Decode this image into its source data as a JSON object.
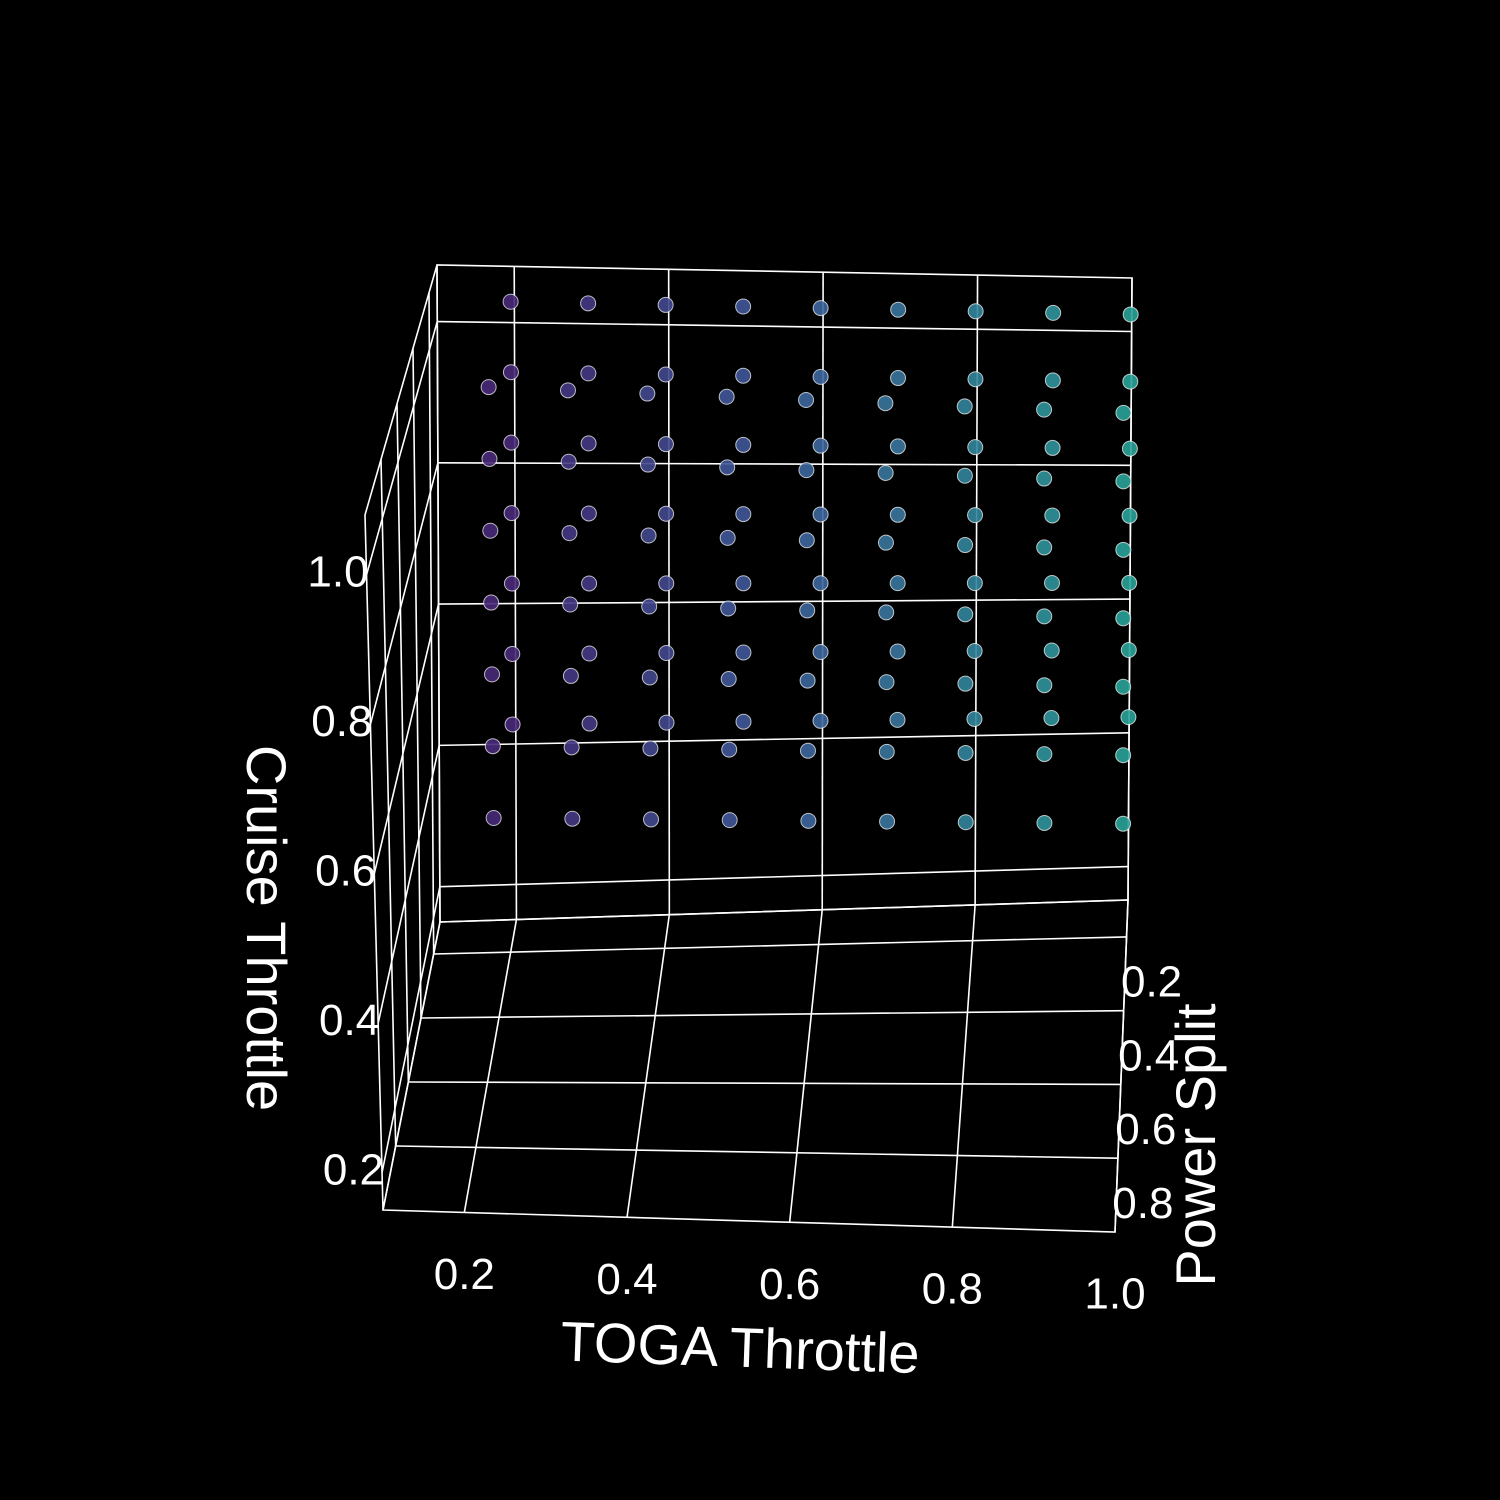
{
  "chart_data": {
    "type": "scatter3d",
    "xlabel": "TOGA Throttle",
    "ylabel": "Power Split",
    "zlabel": "Cruise Throttle",
    "xlim": [
      0.1,
      1.0
    ],
    "ylim": [
      0.1,
      1.0
    ],
    "zlim": [
      0.15,
      1.08
    ],
    "xticks": [
      0.2,
      0.4,
      0.6,
      0.8,
      {
        "value": 1,
        "label": "1.0"
      }
    ],
    "yticks": [
      0.2,
      0.4,
      0.6,
      0.8
    ],
    "zticks": [
      0.2,
      0.4,
      0.6,
      0.8,
      {
        "value": 1,
        "label": "1.0"
      }
    ],
    "grid": true,
    "colormap": [
      "#4a1a6e",
      "#3f5f9e",
      "#2aa39a"
    ],
    "marker_edge_color": "#ffffff",
    "x": [
      0.2,
      0.2,
      0.2,
      0.2,
      0.2,
      0.2,
      0.2,
      0.3,
      0.3,
      0.3,
      0.3,
      0.3,
      0.3,
      0.3,
      0.4,
      0.4,
      0.4,
      0.4,
      0.4,
      0.4,
      0.4,
      0.5,
      0.5,
      0.5,
      0.5,
      0.5,
      0.5,
      0.5,
      0.6,
      0.6,
      0.6,
      0.6,
      0.6,
      0.6,
      0.6,
      0.7,
      0.7,
      0.7,
      0.7,
      0.7,
      0.7,
      0.7,
      0.8,
      0.8,
      0.8,
      0.8,
      0.8,
      0.8,
      0.8,
      0.9,
      0.9,
      0.9,
      0.9,
      0.9,
      0.9,
      0.9,
      1.0,
      1.0,
      1.0,
      1.0,
      1.0,
      1.0,
      1.0,
      0.2,
      0.2,
      0.2,
      0.2,
      0.2,
      0.2,
      0.2,
      0.3,
      0.3,
      0.3,
      0.3,
      0.3,
      0.3,
      0.3,
      0.4,
      0.4,
      0.4,
      0.4,
      0.4,
      0.4,
      0.4,
      0.5,
      0.5,
      0.5,
      0.5,
      0.5,
      0.5,
      0.5,
      0.6,
      0.6,
      0.6,
      0.6,
      0.6,
      0.6,
      0.6,
      0.7,
      0.7,
      0.7,
      0.7,
      0.7,
      0.7,
      0.7,
      0.8,
      0.8,
      0.8,
      0.8,
      0.8,
      0.8,
      0.8,
      0.9,
      0.9,
      0.9,
      0.9,
      0.9,
      0.9,
      0.9,
      1.0,
      1.0,
      1.0,
      1.0,
      1.0,
      1.0,
      1.0
    ],
    "y": [
      0.15,
      0.15,
      0.15,
      0.15,
      0.15,
      0.15,
      0.15,
      0.15,
      0.15,
      0.15,
      0.15,
      0.15,
      0.15,
      0.15,
      0.15,
      0.15,
      0.15,
      0.15,
      0.15,
      0.15,
      0.15,
      0.15,
      0.15,
      0.15,
      0.15,
      0.15,
      0.15,
      0.15,
      0.15,
      0.15,
      0.15,
      0.15,
      0.15,
      0.15,
      0.15,
      0.15,
      0.15,
      0.15,
      0.15,
      0.15,
      0.15,
      0.15,
      0.15,
      0.15,
      0.15,
      0.15,
      0.15,
      0.15,
      0.15,
      0.15,
      0.15,
      0.15,
      0.15,
      0.15,
      0.15,
      0.15,
      0.15,
      0.15,
      0.15,
      0.15,
      0.15,
      0.15,
      0.15,
      0.45,
      0.45,
      0.45,
      0.45,
      0.45,
      0.45,
      0.45,
      0.45,
      0.45,
      0.45,
      0.45,
      0.45,
      0.45,
      0.45,
      0.45,
      0.45,
      0.45,
      0.45,
      0.45,
      0.45,
      0.45,
      0.45,
      0.45,
      0.45,
      0.45,
      0.45,
      0.45,
      0.45,
      0.45,
      0.45,
      0.45,
      0.45,
      0.45,
      0.45,
      0.45,
      0.45,
      0.45,
      0.45,
      0.45,
      0.45,
      0.45,
      0.45,
      0.45,
      0.45,
      0.45,
      0.45,
      0.45,
      0.45,
      0.45,
      0.45,
      0.45,
      0.45,
      0.45,
      0.45,
      0.45,
      0.45,
      0.45,
      0.45,
      0.45,
      0.45,
      0.45,
      0.45,
      0.45
    ],
    "z": [
      0.45,
      0.55,
      0.65,
      0.75,
      0.85,
      0.95,
      1.05,
      0.45,
      0.55,
      0.65,
      0.75,
      0.85,
      0.95,
      1.05,
      0.45,
      0.55,
      0.65,
      0.75,
      0.85,
      0.95,
      1.05,
      0.45,
      0.55,
      0.65,
      0.75,
      0.85,
      0.95,
      1.05,
      0.45,
      0.55,
      0.65,
      0.75,
      0.85,
      0.95,
      1.05,
      0.45,
      0.55,
      0.65,
      0.75,
      0.85,
      0.95,
      1.05,
      0.45,
      0.55,
      0.65,
      0.75,
      0.85,
      0.95,
      1.05,
      0.45,
      0.55,
      0.65,
      0.75,
      0.85,
      0.95,
      1.05,
      0.45,
      0.55,
      0.65,
      0.75,
      0.85,
      0.95,
      1.05,
      0.45,
      0.55,
      0.65,
      0.75,
      0.85,
      0.95,
      1.05,
      0.45,
      0.55,
      0.65,
      0.75,
      0.85,
      0.95,
      1.05,
      0.45,
      0.55,
      0.65,
      0.75,
      0.85,
      0.95,
      1.05,
      0.45,
      0.55,
      0.65,
      0.75,
      0.85,
      0.95,
      1.05,
      0.45,
      0.55,
      0.65,
      0.75,
      0.85,
      0.95,
      1.05,
      0.45,
      0.55,
      0.65,
      0.75,
      0.85,
      0.95,
      1.05,
      0.45,
      0.55,
      0.65,
      0.75,
      0.85,
      0.95,
      1.05,
      0.45,
      0.55,
      0.65,
      0.75,
      0.85,
      0.95,
      1.05,
      0.45,
      0.55,
      0.65,
      0.75,
      0.85,
      0.95,
      1.05
    ]
  }
}
